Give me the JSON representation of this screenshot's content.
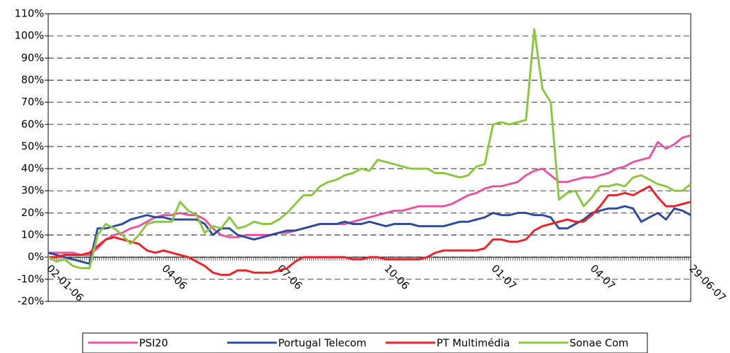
{
  "chart_data": {
    "type": "line",
    "categories": [
      "02-01-06",
      null,
      null,
      null,
      null,
      null,
      null,
      null,
      null,
      null,
      null,
      null,
      null,
      null,
      "04-06",
      null,
      null,
      null,
      null,
      null,
      null,
      null,
      null,
      null,
      null,
      null,
      null,
      null,
      "07-06",
      null,
      null,
      null,
      null,
      null,
      null,
      null,
      null,
      null,
      null,
      null,
      null,
      "10-06",
      null,
      null,
      null,
      null,
      null,
      null,
      null,
      null,
      null,
      null,
      null,
      null,
      "01-07",
      null,
      null,
      null,
      null,
      null,
      null,
      null,
      null,
      null,
      null,
      null,
      "04-07",
      null,
      null,
      null,
      null,
      null,
      null,
      null,
      null,
      null,
      null,
      null,
      "29-06-07"
    ],
    "series": [
      {
        "name": "PSI20",
        "color": "#e8559f",
        "values": [
          2,
          2,
          2,
          2,
          1,
          1,
          4,
          8,
          10,
          11,
          13,
          14,
          16,
          18,
          19,
          19,
          20,
          19,
          19,
          17,
          13,
          10,
          9,
          9,
          10,
          10,
          10,
          10,
          11,
          11,
          12,
          13,
          14,
          15,
          15,
          15,
          15,
          16,
          17,
          18,
          19,
          20,
          21,
          21,
          22,
          23,
          23,
          23,
          23,
          24,
          26,
          28,
          29,
          31,
          32,
          32,
          33,
          34,
          37,
          39,
          40,
          37,
          34,
          34,
          35,
          36,
          36,
          37,
          38,
          40,
          41,
          43,
          44,
          45,
          52,
          49,
          51,
          54,
          55
        ]
      },
      {
        "name": "Portugal Telecom",
        "color": "#2e4b9b",
        "values": [
          2,
          1,
          0,
          -1,
          -2,
          -3,
          13,
          13,
          14,
          15,
          17,
          18,
          19,
          18,
          18,
          17,
          17,
          17,
          17,
          15,
          10,
          13,
          13,
          10,
          9,
          8,
          9,
          10,
          11,
          12,
          12,
          13,
          14,
          15,
          15,
          15,
          16,
          15,
          15,
          16,
          15,
          14,
          15,
          15,
          15,
          14,
          14,
          14,
          14,
          15,
          16,
          16,
          17,
          18,
          20,
          19,
          19,
          20,
          20,
          19,
          19,
          18,
          13,
          13,
          15,
          17,
          20,
          21,
          22,
          22,
          23,
          22,
          16,
          18,
          20,
          17,
          22,
          21,
          19
        ]
      },
      {
        "name": "PT Multimédia",
        "color": "#e8232a",
        "values": [
          0,
          0,
          1,
          1,
          1,
          2,
          5,
          8,
          9,
          8,
          7,
          6,
          3,
          2,
          3,
          2,
          1,
          0,
          -2,
          -4,
          -7,
          -8,
          -8,
          -6,
          -6,
          -7,
          -7,
          -7,
          -6,
          -5,
          -2,
          0,
          0,
          0,
          0,
          0,
          0,
          -1,
          -1,
          0,
          0,
          -1,
          -1,
          -1,
          -1,
          -1,
          0,
          2,
          3,
          3,
          3,
          3,
          3,
          4,
          8,
          8,
          7,
          7,
          8,
          12,
          14,
          15,
          16,
          17,
          16,
          16,
          19,
          23,
          28,
          28,
          29,
          28,
          30,
          32,
          27,
          23,
          23,
          24,
          25
        ]
      },
      {
        "name": "Sonae Com",
        "color": "#8cc63f",
        "values": [
          0,
          -2,
          -1,
          -4,
          -5,
          -5,
          10,
          15,
          13,
          10,
          6,
          10,
          15,
          16,
          16,
          16,
          25,
          21,
          19,
          11,
          14,
          13,
          18,
          13,
          14,
          16,
          15,
          15,
          17,
          20,
          24,
          28,
          28,
          32,
          34,
          35,
          37,
          38,
          40,
          39,
          44,
          43,
          42,
          41,
          40,
          40,
          40,
          38,
          38,
          37,
          36,
          37,
          41,
          42,
          60,
          61,
          60,
          61,
          62,
          103,
          76,
          70,
          26,
          29,
          30,
          23,
          27,
          32,
          32,
          33,
          32,
          36,
          37,
          35,
          33,
          32,
          30,
          30,
          33
        ]
      }
    ],
    "ylim": [
      -20,
      110
    ],
    "yticks": [
      {
        "value": -20,
        "label": "-20%"
      },
      {
        "value": -10,
        "label": "-10%"
      },
      {
        "value": 0,
        "label": "0%"
      },
      {
        "value": 10,
        "label": "10%"
      },
      {
        "value": 20,
        "label": "20%"
      },
      {
        "value": 30,
        "label": "30%"
      },
      {
        "value": 40,
        "label": "40%"
      },
      {
        "value": 50,
        "label": "50%"
      },
      {
        "value": 60,
        "label": "60%"
      },
      {
        "value": 70,
        "label": "70%"
      },
      {
        "value": 80,
        "label": "80%"
      },
      {
        "value": 90,
        "label": "90%"
      },
      {
        "value": 100,
        "label": "100%"
      },
      {
        "value": 110,
        "label": "110%"
      }
    ],
    "grid": true
  }
}
